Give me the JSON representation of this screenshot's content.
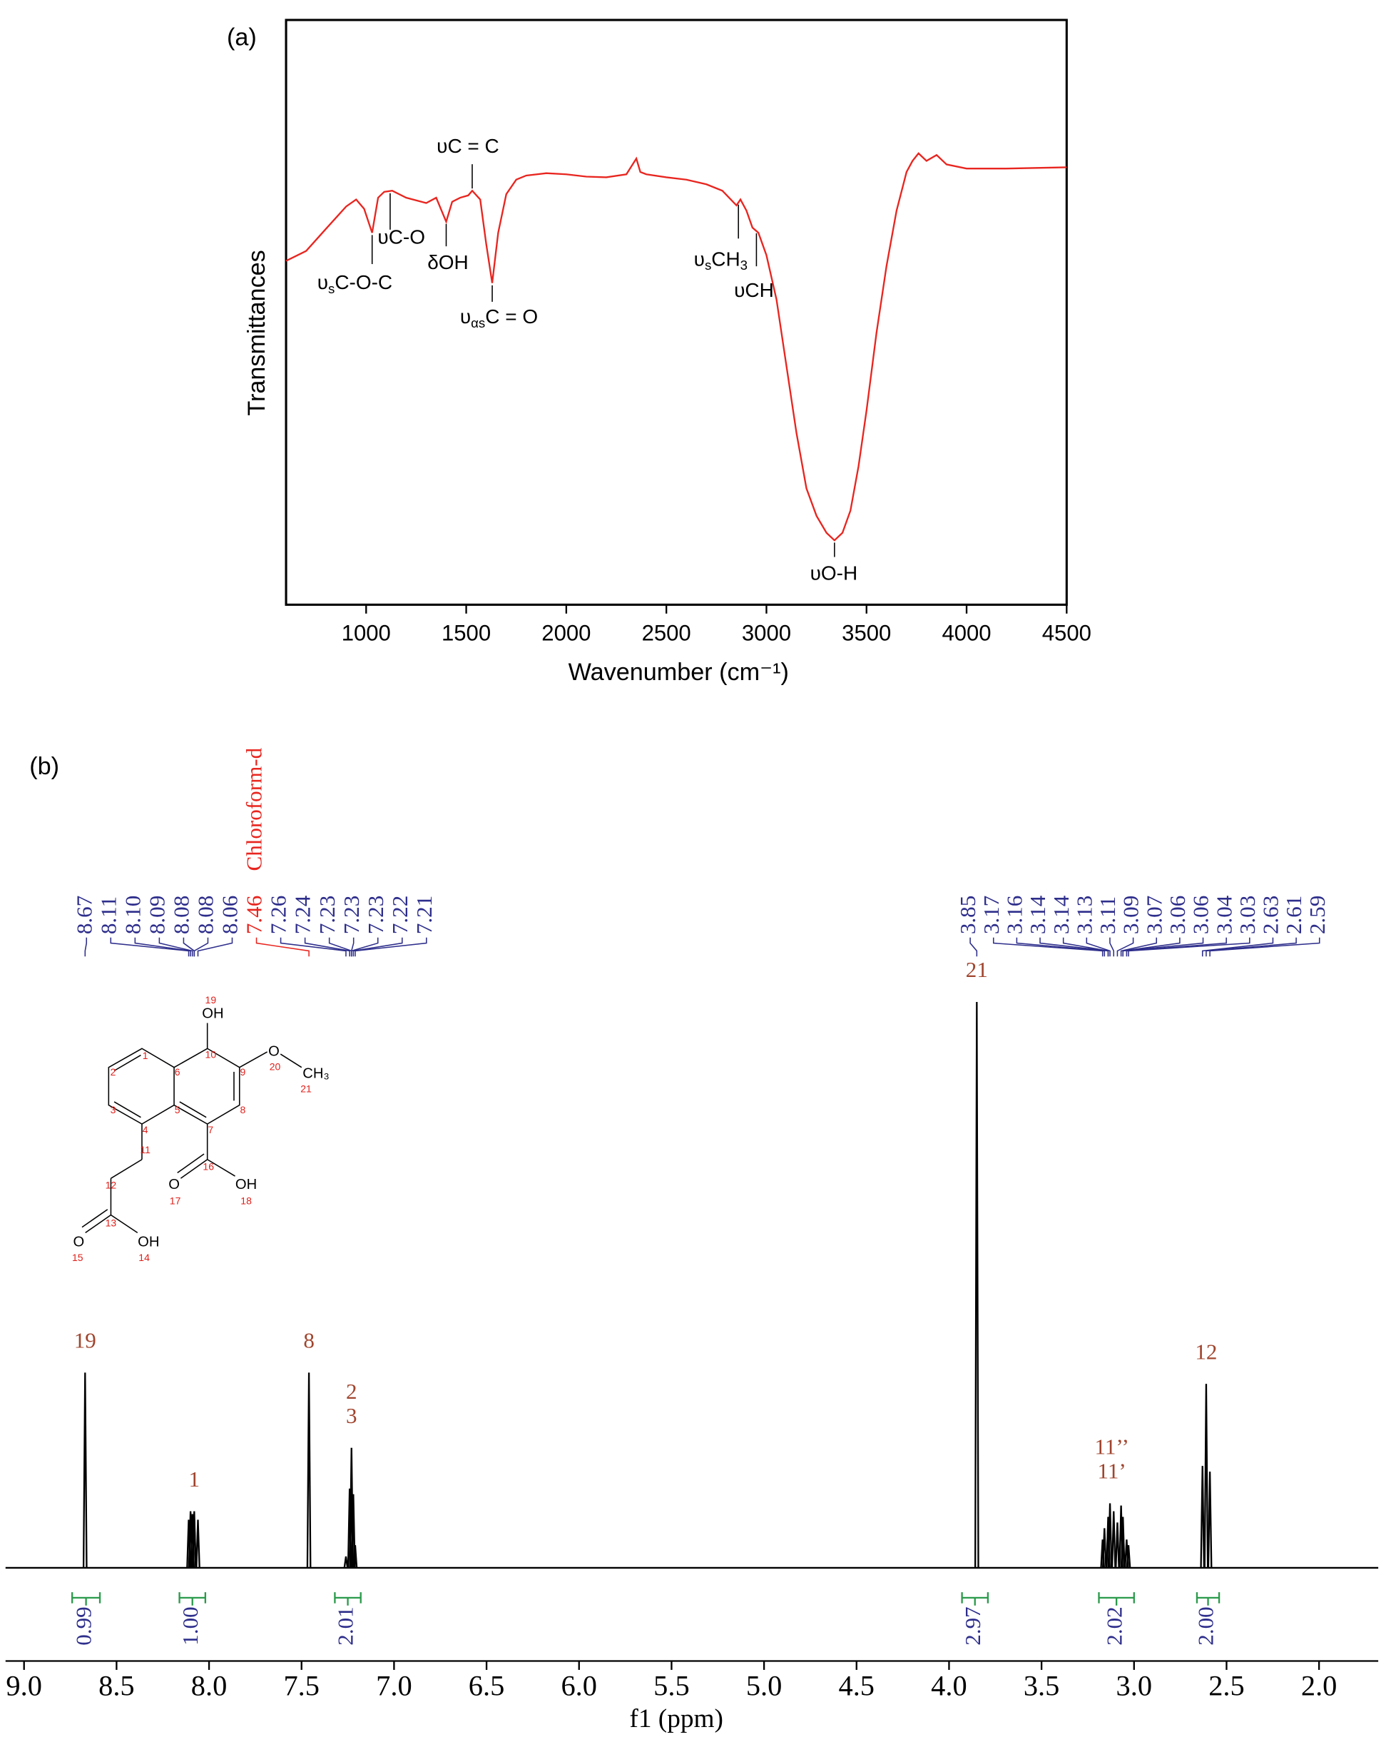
{
  "chart_data": [
    {
      "type": "line",
      "panel": "(a)",
      "xlabel": "Wavenumber (cm⁻¹)",
      "ylabel": "Transmittances",
      "x": [
        600,
        700,
        800,
        900,
        950,
        990,
        1030,
        1060,
        1090,
        1130,
        1200,
        1300,
        1350,
        1400,
        1430,
        1470,
        1510,
        1530,
        1570,
        1600,
        1630,
        1660,
        1700,
        1750,
        1800,
        1900,
        2000,
        2100,
        2200,
        2300,
        2350,
        2370,
        2400,
        2500,
        2600,
        2700,
        2780,
        2850,
        2870,
        2900,
        2930,
        2960,
        3000,
        3050,
        3100,
        3150,
        3200,
        3250,
        3300,
        3340,
        3380,
        3420,
        3460,
        3500,
        3550,
        3600,
        3650,
        3700,
        3730,
        3760,
        3800,
        3850,
        3900,
        4000,
        4200,
        4500
      ],
      "values": [
        58.8,
        60.5,
        64.3,
        68.1,
        69.3,
        67.7,
        63.6,
        69.6,
        70.6,
        70.8,
        69.6,
        68.7,
        69.6,
        65.5,
        68.9,
        69.6,
        70.0,
        70.8,
        69.3,
        61.7,
        55.0,
        63.6,
        70.2,
        72.7,
        73.4,
        73.8,
        73.6,
        73.2,
        73.1,
        73.6,
        76.3,
        74.0,
        73.6,
        73.1,
        72.7,
        71.9,
        70.8,
        68.3,
        69.3,
        67.4,
        64.5,
        63.6,
        59.8,
        52.2,
        40.8,
        29.4,
        19.9,
        15.2,
        12.3,
        11.0,
        12.3,
        16.1,
        23.7,
        33.2,
        46.5,
        57.9,
        67.4,
        74.0,
        75.9,
        77.2,
        75.9,
        76.9,
        75.3,
        74.6,
        74.6,
        74.8
      ],
      "color": "#e8251f",
      "xlim": [
        600,
        4500
      ],
      "ylim": [
        0,
        100
      ],
      "xticks": [
        1000,
        1500,
        2000,
        2500,
        3000,
        3500,
        4000,
        4500
      ],
      "annotations": [
        {
          "parts": [
            "υ",
            "s",
            "C-O-C"
          ],
          "x": 1030
        },
        {
          "parts": [
            "υC-O"
          ],
          "x": 1120
        },
        {
          "parts": [
            "δOH"
          ],
          "x": 1400
        },
        {
          "parts": [
            "υC = C"
          ],
          "x": 1530
        },
        {
          "parts": [
            "υ",
            "αs",
            "C = O"
          ],
          "x": 1630
        },
        {
          "parts": [
            "υ",
            "s",
            "CH",
            "3"
          ],
          "x": 2860
        },
        {
          "parts": [
            "υCH"
          ],
          "x": 2950
        },
        {
          "parts": [
            "υO-H"
          ],
          "x": 3340
        }
      ]
    },
    {
      "type": "spectrum",
      "panel": "(b)",
      "xlabel": "f1 (ppm)",
      "xlim": [
        9.1,
        1.68
      ],
      "ylim": [
        0,
        100
      ],
      "xticks": [
        {
          "value": 9,
          "label": "9.0"
        },
        8.5,
        {
          "value": 8,
          "label": "8.0"
        },
        7.5,
        {
          "value": 7,
          "label": "7.0"
        },
        6.5,
        {
          "value": 6,
          "label": "6.0"
        },
        5.5,
        {
          "value": 5,
          "label": "5.0"
        },
        4.5,
        {
          "value": 4,
          "label": "4.0"
        },
        3.5,
        {
          "value": 3,
          "label": "3.0"
        },
        2.5,
        {
          "value": 2,
          "label": "2.0"
        }
      ],
      "x": [
        8.67,
        8.11,
        8.1,
        8.09,
        8.08,
        8.08,
        8.06,
        7.46,
        7.26,
        7.24,
        7.23,
        7.23,
        7.23,
        7.22,
        7.21,
        3.85,
        3.17,
        3.16,
        3.14,
        3.14,
        3.13,
        3.11,
        3.09,
        3.07,
        3.06,
        3.06,
        3.04,
        3.03,
        2.63,
        2.61,
        2.59
      ],
      "values": [
        34.5,
        8.5,
        10,
        9.5,
        10,
        9,
        8.5,
        34.5,
        2,
        14,
        15,
        14,
        21.2,
        13,
        4,
        100,
        5,
        7,
        9,
        8,
        11.4,
        10,
        8,
        11,
        9,
        6,
        5,
        4,
        18,
        32.5,
        17
      ],
      "color": "#000000",
      "peak_label_color": "#2e2e8c",
      "peak_labels": [
        8.67,
        8.11,
        {
          "value": 8.1,
          "label": "8.10"
        },
        8.09,
        8.08,
        8.08,
        8.06,
        {
          "value": 7.46,
          "solvent": "Chloroform-d",
          "color": "#e8251f"
        },
        7.26,
        7.24,
        7.23,
        7.23,
        7.23,
        7.22,
        7.21,
        3.85,
        3.17,
        3.16,
        3.14,
        3.14,
        3.13,
        3.11,
        3.09,
        3.07,
        3.06,
        3.06,
        3.04,
        3.03,
        2.63,
        2.61,
        2.59
      ],
      "assignment_color": "#a0452e",
      "assignments": [
        {
          "text": [
            "19"
          ],
          "x": 8.67
        },
        {
          "text": [
            "1"
          ],
          "x": 8.08
        },
        {
          "text": [
            "8"
          ],
          "x": 7.46
        },
        {
          "text": [
            "2",
            "3"
          ],
          "x": 7.23
        },
        {
          "text": [
            "21"
          ],
          "x": 3.85
        },
        {
          "text": [
            "11’’",
            "11’"
          ],
          "x": 3.12
        },
        {
          "text": [
            "12"
          ],
          "x": 2.61
        }
      ],
      "integral_color": "#2a9a4a",
      "integrals": [
        {
          "value": 0.99,
          "range": [
            8.74,
            8.59
          ]
        },
        {
          "value": 1,
          "label": "1.00",
          "range": [
            8.16,
            8.02
          ]
        },
        {
          "value": 2.01,
          "range": [
            7.32,
            7.18
          ]
        },
        {
          "value": 2.97,
          "range": [
            3.93,
            3.79
          ]
        },
        {
          "value": 2.02,
          "range": [
            3.19,
            3.0
          ]
        },
        {
          "value": 2,
          "label": "2.00",
          "range": [
            2.66,
            2.54
          ]
        }
      ],
      "structure": {
        "atoms": [
          "OH",
          "O",
          "CH₃",
          "O",
          "OH",
          "O",
          "OH"
        ],
        "numbers": [
          "1",
          "2",
          "3",
          "4",
          "5",
          "6",
          "7",
          "8",
          "9",
          "10",
          "11",
          "12",
          "13",
          "14",
          "15",
          "16",
          "17",
          "18",
          "19",
          "20",
          "21"
        ],
        "number_color": "#e0201b"
      }
    }
  ]
}
